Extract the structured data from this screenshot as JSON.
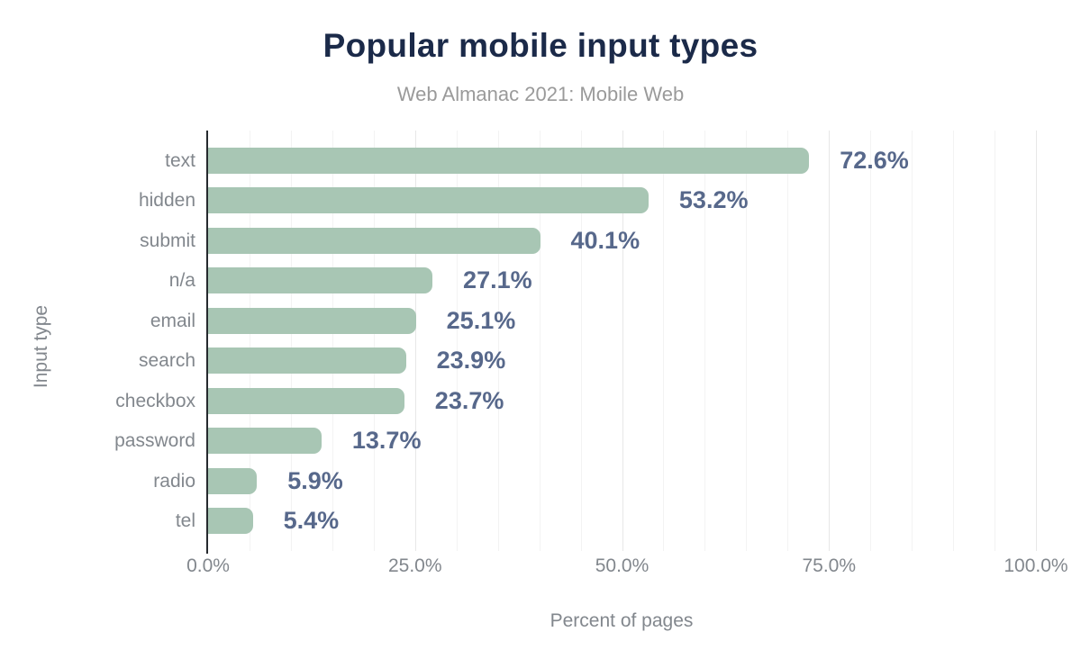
{
  "chart_data": {
    "type": "bar",
    "orientation": "horizontal",
    "title": "Popular mobile input types",
    "subtitle": "Web Almanac 2021: Mobile Web",
    "xlabel": "Percent of pages",
    "ylabel": "Input type",
    "categories": [
      "text",
      "hidden",
      "submit",
      "n/a",
      "email",
      "search",
      "checkbox",
      "password",
      "radio",
      "tel"
    ],
    "values": [
      72.6,
      53.2,
      40.1,
      27.1,
      25.1,
      23.9,
      23.7,
      13.7,
      5.9,
      5.4
    ],
    "value_labels": [
      "72.6%",
      "53.2%",
      "40.1%",
      "27.1%",
      "25.1%",
      "23.9%",
      "23.7%",
      "13.7%",
      "5.9%",
      "5.4%"
    ],
    "x_ticks": [
      {
        "label": "0.0%",
        "value": 0
      },
      {
        "label": "25.0%",
        "value": 25
      },
      {
        "label": "50.0%",
        "value": 50
      },
      {
        "label": "75.0%",
        "value": 75
      },
      {
        "label": "100.0%",
        "value": 100
      }
    ],
    "xlim": [
      0,
      100
    ],
    "grid": "vertical; minor every 5%, major every 25%",
    "legend": "none",
    "colors": {
      "bar": "#a8c6b4",
      "value_label": "#57688b",
      "title": "#1b2a49",
      "subtitle": "#9a9a9a",
      "axis_text": "#82878d",
      "axis_line": "#26292e",
      "gridline_minor": "#f3f3f3",
      "gridline_major": "#e7e7e7"
    }
  }
}
